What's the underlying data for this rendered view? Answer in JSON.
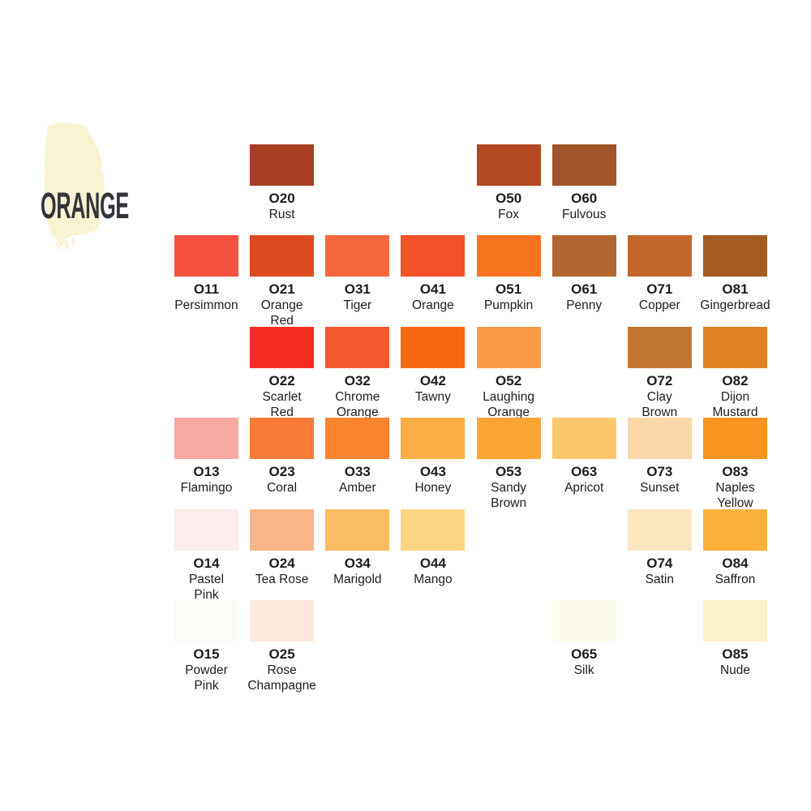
{
  "header": {
    "title": "ORANGE",
    "title_color": "#32353b",
    "brush_color": "#faf3d3"
  },
  "palette": {
    "grid": {
      "columns": 8,
      "rows": 6
    },
    "text_color": "#1d1d1d",
    "rows": [
      {
        "cells": [
          {
            "code": "O20",
            "name": "Rust",
            "color": "#a73d21",
            "col": 2
          },
          {
            "code": "O50",
            "name": "Fox",
            "color": "#b24920",
            "col": 5
          },
          {
            "code": "O60",
            "name": "Fulvous",
            "color": "#a2552b",
            "col": 6
          }
        ]
      },
      {
        "cells": [
          {
            "code": "O11",
            "name": "Persimmon",
            "color": "#f55140",
            "col": 1
          },
          {
            "code": "O21",
            "name": "Orange\nRed",
            "color": "#dd4a21",
            "col": 2
          },
          {
            "code": "O31",
            "name": "Tiger",
            "color": "#f4673f",
            "col": 3
          },
          {
            "code": "O41",
            "name": "Orange",
            "color": "#f2512a",
            "col": 4
          },
          {
            "code": "O51",
            "name": "Pumpkin",
            "color": "#f7741f",
            "col": 5
          },
          {
            "code": "O61",
            "name": "Penny",
            "color": "#b1672f",
            "col": 6
          },
          {
            "code": "O71",
            "name": "Copper",
            "color": "#c4672e",
            "col": 7
          },
          {
            "code": "O81",
            "name": "Gingerbread",
            "color": "#a45c22",
            "col": 8
          }
        ]
      },
      {
        "cells": [
          {
            "code": "O22",
            "name": "Scarlet\nRed",
            "color": "#f62c23",
            "col": 2
          },
          {
            "code": "O32",
            "name": "Chrome\nOrange",
            "color": "#f5582c",
            "col": 3
          },
          {
            "code": "O42",
            "name": "Tawny",
            "color": "#f5670e",
            "col": 4
          },
          {
            "code": "O52",
            "name": "Laughing\nOrange",
            "color": "#f99a49",
            "col": 5
          },
          {
            "code": "O72",
            "name": "Clay\nBrown",
            "color": "#c1772f",
            "col": 7
          },
          {
            "code": "O82",
            "name": "Dijon\nMustard",
            "color": "#e18121",
            "col": 8
          }
        ]
      },
      {
        "cells": [
          {
            "code": "O13",
            "name": "Flamingo",
            "color": "#f9a9a4",
            "col": 1
          },
          {
            "code": "O23",
            "name": "Coral",
            "color": "#f87b38",
            "col": 2
          },
          {
            "code": "O33",
            "name": "Amber",
            "color": "#f8842e",
            "col": 3
          },
          {
            "code": "O43",
            "name": "Honey",
            "color": "#fbad46",
            "col": 4
          },
          {
            "code": "O53",
            "name": "Sandy\nBrown",
            "color": "#fba534",
            "col": 5
          },
          {
            "code": "O63",
            "name": "Apricot",
            "color": "#fcc76d",
            "col": 6
          },
          {
            "code": "O73",
            "name": "Sunset",
            "color": "#fbd6a7",
            "col": 7
          },
          {
            "code": "O83",
            "name": "Naples\nYellow",
            "color": "#f8941f",
            "col": 8
          }
        ]
      },
      {
        "cells": [
          {
            "code": "O14",
            "name": "Pastel\nPink",
            "color": "#fdedec",
            "col": 1
          },
          {
            "code": "O24",
            "name": "Tea Rose",
            "color": "#f9b489",
            "col": 2
          },
          {
            "code": "O34",
            "name": "Marigold",
            "color": "#f9bd63",
            "col": 3
          },
          {
            "code": "O44",
            "name": "Mango",
            "color": "#fcd584",
            "col": 4
          },
          {
            "code": "O74",
            "name": "Satin",
            "color": "#fce6c0",
            "col": 7
          },
          {
            "code": "O84",
            "name": "Saffron",
            "color": "#f9b13c",
            "col": 8
          }
        ]
      },
      {
        "cells": [
          {
            "code": "O15",
            "name": "Powder\nPink",
            "color": "#fdfbf5",
            "col": 1
          },
          {
            "code": "O25",
            "name": "Rose\nChampagne",
            "color": "#fdeadd",
            "col": 2
          },
          {
            "code": "O65",
            "name": "Silk",
            "color": "#fdfceb",
            "col": 6
          },
          {
            "code": "O85",
            "name": "Nude",
            "color": "#fbf0ca",
            "col": 8
          }
        ]
      }
    ]
  }
}
